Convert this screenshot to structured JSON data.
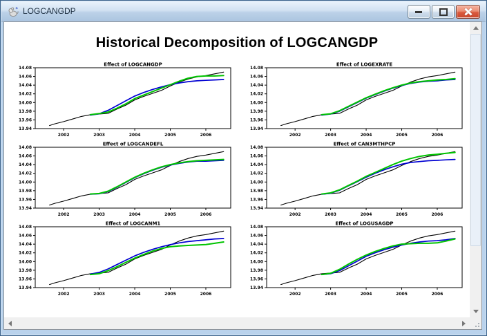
{
  "window": {
    "title": "LOGCANGDP",
    "controls": {
      "minimize_label": "Minimize",
      "restore_label": "Restore",
      "close_label": "Close"
    }
  },
  "page": {
    "title": "Historical Decomposition of LOGCANGDP"
  },
  "icons": {
    "app_icon": "rats-program-icon",
    "minimize": "dash",
    "restore": "box-in-box",
    "close": "x",
    "scroll_up": "triangle-up",
    "scroll_down": "triangle-down",
    "scroll_left": "triangle-left",
    "scroll_right": "triangle-right",
    "resize_grip": "diagonal-dots"
  },
  "colors": {
    "actual_line": "#000000",
    "blue_line": "#0000d2",
    "green_line": "#00c400",
    "titlebar": "#bcd1e8",
    "close_button_red": "#da5a3e"
  },
  "chart_data": [
    {
      "type": "line",
      "title": "Effect of LOGCANGDP",
      "xlim": [
        2001.2,
        2006.7
      ],
      "ylim": [
        13.94,
        14.08
      ],
      "xticks": [
        2002,
        2003,
        2004,
        2005,
        2006
      ],
      "yticks": [
        13.94,
        13.96,
        13.98,
        14.0,
        14.02,
        14.04,
        14.06,
        14.08
      ],
      "series": [
        {
          "name": "black-line",
          "color": "#000000",
          "width": 1.1,
          "x": [
            2001.6,
            2001.75,
            2002,
            2002.25,
            2002.5,
            2002.75,
            2003,
            2003.25,
            2003.5,
            2003.75,
            2004,
            2004.25,
            2004.5,
            2004.75,
            2005,
            2005.25,
            2005.5,
            2005.75,
            2006,
            2006.25,
            2006.5
          ],
          "y": [
            13.947,
            13.951,
            13.956,
            13.962,
            13.968,
            13.972,
            13.9735,
            13.975,
            13.985,
            13.994,
            14.006,
            14.014,
            14.021,
            14.028,
            14.038,
            14.047,
            14.054,
            14.059,
            14.062,
            14.066,
            14.07
          ]
        },
        {
          "name": "blue-line",
          "color": "#0000d2",
          "width": 1.7,
          "x": [
            2002.75,
            2003,
            2003.25,
            2003.5,
            2003.75,
            2004,
            2004.25,
            2004.5,
            2004.75,
            2005,
            2005.25,
            2005.5,
            2005.75,
            2006,
            2006.25,
            2006.5
          ],
          "y": [
            13.971,
            13.974,
            13.982,
            13.993,
            14.004,
            14.015,
            14.023,
            14.03,
            14.036,
            14.041,
            14.045,
            14.048,
            14.05,
            14.051,
            14.052,
            14.053
          ]
        },
        {
          "name": "green-line",
          "color": "#00c400",
          "width": 2,
          "x": [
            2002.75,
            2003,
            2003.25,
            2003.5,
            2003.75,
            2004,
            2004.25,
            2004.5,
            2004.75,
            2005,
            2005.25,
            2005.5,
            2005.75,
            2006,
            2006.25,
            2006.5
          ],
          "y": [
            13.972,
            13.9745,
            13.978,
            13.987,
            13.997,
            14.009,
            14.017,
            14.025,
            14.033,
            14.041,
            14.049,
            14.056,
            14.06,
            14.061,
            14.061,
            14.062
          ]
        }
      ]
    },
    {
      "type": "line",
      "title": "Effect of LOGEXRATE",
      "xlim": [
        2001.2,
        2006.7
      ],
      "ylim": [
        13.94,
        14.08
      ],
      "xticks": [
        2002,
        2003,
        2004,
        2005,
        2006
      ],
      "yticks": [
        13.94,
        13.96,
        13.98,
        14.0,
        14.02,
        14.04,
        14.06,
        14.08
      ],
      "series": [
        {
          "name": "black-line",
          "color": "#000000",
          "width": 1.1,
          "x": [
            2001.6,
            2001.75,
            2002,
            2002.25,
            2002.5,
            2002.75,
            2003,
            2003.25,
            2003.5,
            2003.75,
            2004,
            2004.25,
            2004.5,
            2004.75,
            2005,
            2005.25,
            2005.5,
            2005.75,
            2006,
            2006.25,
            2006.5
          ],
          "y": [
            13.947,
            13.951,
            13.956,
            13.962,
            13.968,
            13.972,
            13.9735,
            13.975,
            13.985,
            13.994,
            14.006,
            14.014,
            14.021,
            14.028,
            14.038,
            14.047,
            14.054,
            14.059,
            14.062,
            14.066,
            14.07
          ]
        },
        {
          "name": "blue-line",
          "color": "#0000d2",
          "width": 1.7,
          "x": [
            2002.75,
            2003,
            2003.25,
            2003.5,
            2003.75,
            2004,
            2004.25,
            2004.5,
            2004.75,
            2005,
            2005.25,
            2005.5,
            2005.75,
            2006,
            2006.25,
            2006.5
          ],
          "y": [
            13.971,
            13.9735,
            13.98,
            13.99,
            14.0,
            14.01,
            14.018,
            14.026,
            14.033,
            14.039,
            14.044,
            14.047,
            14.049,
            14.05,
            14.052,
            14.053
          ]
        },
        {
          "name": "green-line",
          "color": "#00c400",
          "width": 2,
          "x": [
            2002.75,
            2003,
            2003.25,
            2003.5,
            2003.75,
            2004,
            2004.25,
            2004.5,
            2004.75,
            2005,
            2005.25,
            2005.5,
            2005.75,
            2006,
            2006.25,
            2006.5
          ],
          "y": [
            13.972,
            13.974,
            13.981,
            13.991,
            14.001,
            14.011,
            14.019,
            14.027,
            14.034,
            14.04,
            14.045,
            14.048,
            14.05,
            14.052,
            14.053,
            14.055
          ]
        }
      ]
    },
    {
      "type": "line",
      "title": "Effect of LOGCANDEFL",
      "xlim": [
        2001.2,
        2006.7
      ],
      "ylim": [
        13.94,
        14.08
      ],
      "xticks": [
        2002,
        2003,
        2004,
        2005,
        2006
      ],
      "yticks": [
        13.94,
        13.96,
        13.98,
        14.0,
        14.02,
        14.04,
        14.06,
        14.08
      ],
      "series": [
        {
          "name": "black-line",
          "color": "#000000",
          "width": 1.1,
          "x": [
            2001.6,
            2001.75,
            2002,
            2002.25,
            2002.5,
            2002.75,
            2003,
            2003.25,
            2003.5,
            2003.75,
            2004,
            2004.25,
            2004.5,
            2004.75,
            2005,
            2005.25,
            2005.5,
            2005.75,
            2006,
            2006.25,
            2006.5
          ],
          "y": [
            13.947,
            13.951,
            13.956,
            13.962,
            13.968,
            13.972,
            13.9735,
            13.975,
            13.985,
            13.994,
            14.006,
            14.014,
            14.021,
            14.028,
            14.038,
            14.047,
            14.054,
            14.059,
            14.062,
            14.066,
            14.07
          ]
        },
        {
          "name": "blue-line",
          "color": "#0000d2",
          "width": 1.7,
          "x": [
            2002.75,
            2003,
            2003.25,
            2003.5,
            2003.75,
            2004,
            2004.25,
            2004.5,
            2004.75,
            2005,
            2005.25,
            2005.5,
            2005.75,
            2006,
            2006.25,
            2006.5
          ],
          "y": [
            13.972,
            13.973,
            13.978,
            13.988,
            13.999,
            14.01,
            14.019,
            14.027,
            14.034,
            14.039,
            14.043,
            14.046,
            14.048,
            14.048,
            14.049,
            14.05
          ]
        },
        {
          "name": "green-line",
          "color": "#00c400",
          "width": 2,
          "x": [
            2002.75,
            2003,
            2003.25,
            2003.5,
            2003.75,
            2004,
            2004.25,
            2004.5,
            2004.75,
            2005,
            2005.25,
            2005.5,
            2005.75,
            2006,
            2006.25,
            2006.5
          ],
          "y": [
            13.9725,
            13.9735,
            13.979,
            13.989,
            14.0,
            14.011,
            14.02,
            14.028,
            14.035,
            14.04,
            14.044,
            14.047,
            14.049,
            14.05,
            14.051,
            14.052
          ]
        }
      ]
    },
    {
      "type": "line",
      "title": "Effect of CAN3MTHPCP",
      "xlim": [
        2001.2,
        2006.7
      ],
      "ylim": [
        13.94,
        14.08
      ],
      "xticks": [
        2002,
        2003,
        2004,
        2005,
        2006
      ],
      "yticks": [
        13.94,
        13.96,
        13.98,
        14.0,
        14.02,
        14.04,
        14.06,
        14.08
      ],
      "series": [
        {
          "name": "black-line",
          "color": "#000000",
          "width": 1.1,
          "x": [
            2001.6,
            2001.75,
            2002,
            2002.25,
            2002.5,
            2002.75,
            2003,
            2003.25,
            2003.5,
            2003.75,
            2004,
            2004.25,
            2004.5,
            2004.75,
            2005,
            2005.25,
            2005.5,
            2005.75,
            2006,
            2006.25,
            2006.5
          ],
          "y": [
            13.947,
            13.951,
            13.956,
            13.962,
            13.968,
            13.972,
            13.9735,
            13.975,
            13.985,
            13.994,
            14.006,
            14.014,
            14.021,
            14.028,
            14.038,
            14.047,
            14.054,
            14.059,
            14.062,
            14.066,
            14.07
          ]
        },
        {
          "name": "blue-line",
          "color": "#0000d2",
          "width": 1.7,
          "x": [
            2002.75,
            2003,
            2003.25,
            2003.5,
            2003.75,
            2004,
            2004.25,
            2004.5,
            2004.75,
            2005,
            2005.25,
            2005.5,
            2005.75,
            2006,
            2006.25,
            2006.5
          ],
          "y": [
            13.972,
            13.974,
            13.981,
            13.991,
            14.001,
            14.011,
            14.02,
            14.028,
            14.035,
            14.041,
            14.045,
            14.047,
            14.049,
            14.05,
            14.051,
            14.052
          ]
        },
        {
          "name": "green-line",
          "color": "#00c400",
          "width": 2,
          "x": [
            2002.75,
            2003,
            2003.25,
            2003.5,
            2003.75,
            2004,
            2004.25,
            2004.5,
            2004.75,
            2005,
            2005.25,
            2005.5,
            2005.75,
            2006,
            2006.25,
            2006.5
          ],
          "y": [
            13.9725,
            13.975,
            13.982,
            13.992,
            14.002,
            14.013,
            14.022,
            14.031,
            14.04,
            14.048,
            14.054,
            14.059,
            14.062,
            14.064,
            14.066,
            14.068
          ]
        }
      ]
    },
    {
      "type": "line",
      "title": "Effect of LOGCANM1",
      "xlim": [
        2001.2,
        2006.7
      ],
      "ylim": [
        13.94,
        14.08
      ],
      "xticks": [
        2002,
        2003,
        2004,
        2005,
        2006
      ],
      "yticks": [
        13.94,
        13.96,
        13.98,
        14.0,
        14.02,
        14.04,
        14.06,
        14.08
      ],
      "series": [
        {
          "name": "black-line",
          "color": "#000000",
          "width": 1.1,
          "x": [
            2001.6,
            2001.75,
            2002,
            2002.25,
            2002.5,
            2002.75,
            2003,
            2003.25,
            2003.5,
            2003.75,
            2004,
            2004.25,
            2004.5,
            2004.75,
            2005,
            2005.25,
            2005.5,
            2005.75,
            2006,
            2006.25,
            2006.5
          ],
          "y": [
            13.947,
            13.951,
            13.956,
            13.962,
            13.968,
            13.972,
            13.9735,
            13.975,
            13.985,
            13.994,
            14.006,
            14.014,
            14.021,
            14.028,
            14.038,
            14.047,
            14.054,
            14.059,
            14.062,
            14.066,
            14.07
          ]
        },
        {
          "name": "blue-line",
          "color": "#0000d2",
          "width": 1.7,
          "x": [
            2002.75,
            2003,
            2003.25,
            2003.5,
            2003.75,
            2004,
            2004.25,
            2004.5,
            2004.75,
            2005,
            2005.25,
            2005.5,
            2005.75,
            2006,
            2006.25,
            2006.5
          ],
          "y": [
            13.971,
            13.975,
            13.983,
            13.993,
            14.003,
            14.013,
            14.021,
            14.028,
            14.034,
            14.039,
            14.043,
            14.046,
            14.048,
            14.05,
            14.052,
            14.053
          ]
        },
        {
          "name": "green-line",
          "color": "#00c400",
          "width": 2,
          "x": [
            2002.75,
            2003,
            2003.25,
            2003.5,
            2003.75,
            2004,
            2004.25,
            2004.5,
            2004.75,
            2005,
            2005.25,
            2005.5,
            2005.75,
            2006,
            2006.25,
            2006.5
          ],
          "y": [
            13.97,
            13.972,
            13.979,
            13.988,
            13.998,
            14.008,
            14.016,
            14.024,
            14.03,
            14.034,
            14.036,
            14.037,
            14.038,
            14.039,
            14.042,
            14.045
          ]
        }
      ]
    },
    {
      "type": "line",
      "title": "Effect of LOGUSAGDP",
      "xlim": [
        2001.2,
        2006.7
      ],
      "ylim": [
        13.94,
        14.08
      ],
      "xticks": [
        2002,
        2003,
        2004,
        2005,
        2006
      ],
      "yticks": [
        13.94,
        13.96,
        13.98,
        14.0,
        14.02,
        14.04,
        14.06,
        14.08
      ],
      "series": [
        {
          "name": "black-line",
          "color": "#000000",
          "width": 1.1,
          "x": [
            2001.6,
            2001.75,
            2002,
            2002.25,
            2002.5,
            2002.75,
            2003,
            2003.25,
            2003.5,
            2003.75,
            2004,
            2004.25,
            2004.5,
            2004.75,
            2005,
            2005.25,
            2005.5,
            2005.75,
            2006,
            2006.25,
            2006.5
          ],
          "y": [
            13.947,
            13.951,
            13.956,
            13.962,
            13.968,
            13.972,
            13.9735,
            13.975,
            13.985,
            13.994,
            14.006,
            14.014,
            14.021,
            14.028,
            14.038,
            14.047,
            14.054,
            14.059,
            14.062,
            14.066,
            14.07
          ]
        },
        {
          "name": "blue-line",
          "color": "#0000d2",
          "width": 1.7,
          "x": [
            2002.75,
            2003,
            2003.25,
            2003.5,
            2003.75,
            2004,
            2004.25,
            2004.5,
            2004.75,
            2005,
            2005.25,
            2005.5,
            2005.75,
            2006,
            2006.25,
            2006.5
          ],
          "y": [
            13.97,
            13.972,
            13.979,
            13.99,
            14.001,
            14.012,
            14.02,
            14.027,
            14.033,
            14.038,
            14.042,
            14.045,
            14.047,
            14.048,
            14.05,
            14.053
          ]
        },
        {
          "name": "green-line",
          "color": "#00c400",
          "width": 2,
          "x": [
            2002.75,
            2003,
            2003.25,
            2003.5,
            2003.75,
            2004,
            2004.25,
            2004.5,
            2004.75,
            2005,
            2005.25,
            2005.5,
            2005.75,
            2006,
            2006.25,
            2006.5
          ],
          "y": [
            13.97,
            13.973,
            13.982,
            13.994,
            14.005,
            14.015,
            14.023,
            14.03,
            14.036,
            14.04,
            14.041,
            14.042,
            14.042,
            14.043,
            14.047,
            14.052
          ]
        }
      ]
    }
  ]
}
